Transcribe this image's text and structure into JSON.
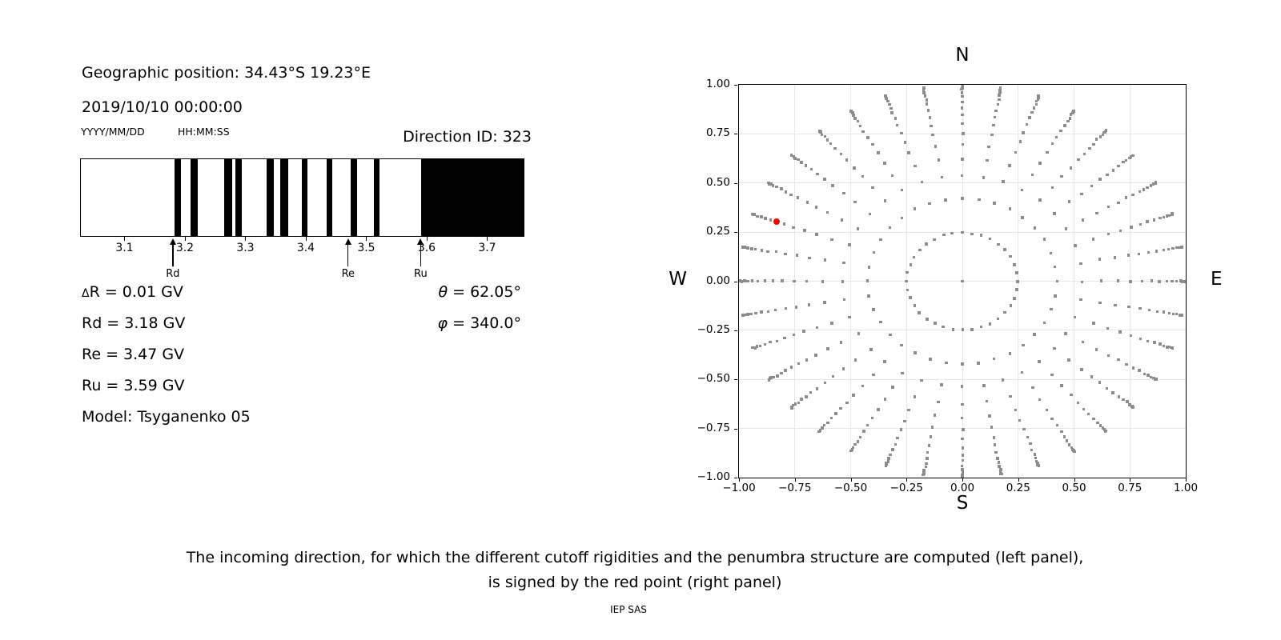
{
  "colors": {
    "dot_gray": "#8c8c8c",
    "highlight_red": "#ff0000",
    "grid_line": "#e7e7e7",
    "bar_black": "#000000"
  },
  "left_panel": {
    "geographic_position": "Geographic position: 34.43°S 19.23°E",
    "datetime": "2019/10/10 00:00:00",
    "date_format_label": "YYYY/MM/DD",
    "time_format_label": "HH:MM:SS",
    "direction_id_label": "Direction ID: 323",
    "values": {
      "delta_sym": "Δ",
      "delta_rest": "R = 0.01 GV",
      "rd": "Rd = 3.18 GV",
      "re": "Re = 3.47 GV",
      "ru": "Ru = 3.59 GV",
      "model": "Model: Tsyganenko 05",
      "theta_sym": "θ",
      "theta_rest": " = 62.05°",
      "phi_sym": "φ",
      "phi_rest": " = 340.0°"
    }
  },
  "caption": {
    "line1": "The incoming direction, for which the different cutoff rigidities and the penumbra structure are computed (left panel),",
    "line2": "is signed by the red point (right panel)"
  },
  "credit": "IEP SAS",
  "chart_data": [
    {
      "type": "bar",
      "panel": "left",
      "xlim": [
        3.0265,
        3.759
      ],
      "x_ticks": [
        3.1,
        3.2,
        3.3,
        3.4,
        3.5,
        3.6,
        3.7
      ],
      "x_tick_labels": [
        "3.1",
        "3.2",
        "3.3",
        "3.4",
        "3.5",
        "3.6",
        "3.7"
      ],
      "delta_r_gv": 0.01,
      "forbidden_bands_gv": [
        [
          3.182,
          3.192
        ],
        [
          3.208,
          3.22
        ],
        [
          3.264,
          3.277
        ],
        [
          3.282,
          3.293
        ],
        [
          3.334,
          3.346
        ],
        [
          3.356,
          3.37
        ],
        [
          3.392,
          3.401
        ],
        [
          3.433,
          3.443
        ],
        [
          3.473,
          3.483
        ],
        [
          3.511,
          3.521
        ],
        [
          3.589,
          3.759
        ]
      ],
      "markers": [
        {
          "label": "Rd",
          "value_gv": 3.18
        },
        {
          "label": "Re",
          "value_gv": 3.47
        },
        {
          "label": "Ru",
          "value_gv": 3.59
        }
      ]
    },
    {
      "type": "scatter",
      "panel": "right",
      "xlim": [
        -1.0,
        1.0
      ],
      "ylim": [
        -1.0,
        1.0
      ],
      "grid": true,
      "ticks": [
        -1.0,
        -0.75,
        -0.5,
        -0.25,
        0.0,
        0.25,
        0.5,
        0.75,
        1.0
      ],
      "tick_labels": [
        "−1.00",
        "−0.75",
        "−0.50",
        "−0.25",
        "0.00",
        "0.25",
        "0.50",
        "0.75",
        "1.00"
      ],
      "compass_labels": {
        "top": "N",
        "bottom": "S",
        "left": "W",
        "right": "E"
      },
      "azimuth_spokes_deg": {
        "start": 0,
        "step": 10,
        "count": 36
      },
      "ring_radii": [
        0.248,
        0.4227,
        0.5367,
        0.6242,
        0.6953,
        0.7545,
        0.8047,
        0.8472,
        0.8833,
        0.9138,
        0.9391,
        0.9596,
        0.9758,
        0.9877,
        0.9956,
        0.9995
      ],
      "center_point": [
        0.0,
        0.0
      ],
      "red_point": {
        "x": -0.8301,
        "y": 0.3021,
        "azimuth_deg": 290,
        "radius": 0.8833
      }
    }
  ]
}
